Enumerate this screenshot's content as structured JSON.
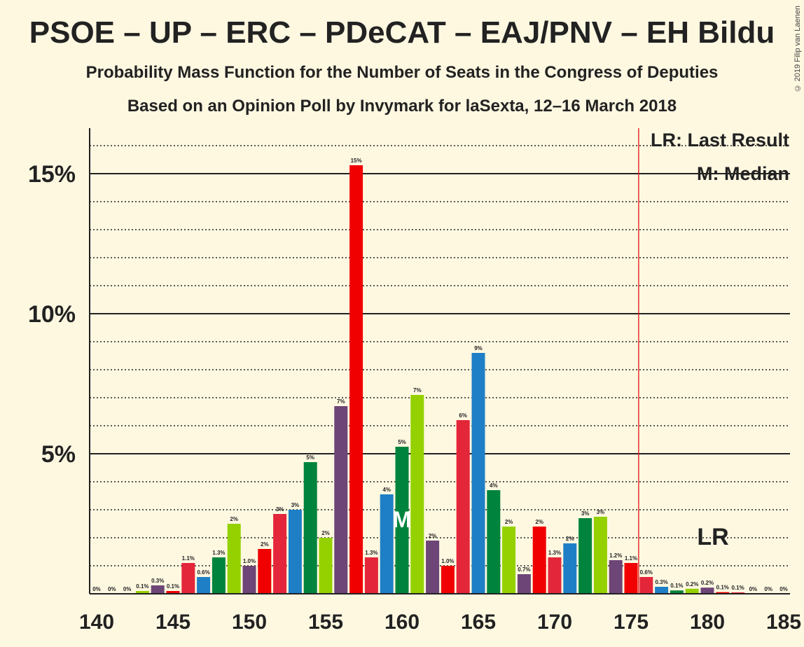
{
  "chart_data": {
    "type": "bar",
    "title": "PSOE – UP – ERC – PDeCAT – EAJ/PNV – EH Bildu",
    "subtitle": "Probability Mass Function for the Number of Seats in the Congress of Deputies",
    "subtitle2": "Based on an Opinion Poll by Invymark for laSexta, 12–16 March 2018",
    "credit": "© 2019 Filip van Laenen",
    "legend": {
      "lr": "LR: Last Result",
      "m": "M: Median"
    },
    "markers": {
      "lr_label": "LR",
      "m_label": "M",
      "last_result_seat": 176,
      "median_seat": 160
    },
    "ylim": [
      0,
      16.5
    ],
    "xlim": [
      140,
      185
    ],
    "xticks": [
      140,
      145,
      150,
      155,
      160,
      165,
      170,
      175,
      180,
      185
    ],
    "yticks": [
      {
        "v": 5,
        "label": "5%"
      },
      {
        "v": 10,
        "label": "10%"
      },
      {
        "v": 15,
        "label": "15%"
      }
    ],
    "grid": true,
    "colors": [
      "#e4263a",
      "#1e7fc6",
      "#00843d",
      "#95d100",
      "#6d4577",
      "#f00000"
    ],
    "bars": [
      {
        "x": 140,
        "v": 0.0,
        "label": "0%"
      },
      {
        "x": 141,
        "v": 0.0,
        "label": "0%"
      },
      {
        "x": 142,
        "v": 0.0,
        "label": "0%"
      },
      {
        "x": 143,
        "v": 0.1,
        "label": "0.1%"
      },
      {
        "x": 144,
        "v": 0.3,
        "label": "0.3%"
      },
      {
        "x": 145,
        "v": 0.1,
        "label": "0.1%"
      },
      {
        "x": 146,
        "v": 1.1,
        "label": "1.1%"
      },
      {
        "x": 147,
        "v": 0.6,
        "label": "0.6%"
      },
      {
        "x": 148,
        "v": 1.3,
        "label": "1.3%"
      },
      {
        "x": 149,
        "v": 2.5,
        "label": "2%"
      },
      {
        "x": 150,
        "v": 1.0,
        "label": "1.0%"
      },
      {
        "x": 151,
        "v": 1.6,
        "label": "2%"
      },
      {
        "x": 152,
        "v": 2.85,
        "label": "3%"
      },
      {
        "x": 153,
        "v": 3.0,
        "label": "3%"
      },
      {
        "x": 154,
        "v": 4.7,
        "label": "5%"
      },
      {
        "x": 155,
        "v": 2.0,
        "label": "2%"
      },
      {
        "x": 156,
        "v": 6.7,
        "label": "7%"
      },
      {
        "x": 157,
        "v": 15.3,
        "label": "15%"
      },
      {
        "x": 158,
        "v": 1.3,
        "label": "1.3%"
      },
      {
        "x": 159,
        "v": 3.55,
        "label": "4%"
      },
      {
        "x": 160,
        "v": 5.25,
        "label": "5%"
      },
      {
        "x": 161,
        "v": 7.1,
        "label": "7%"
      },
      {
        "x": 162,
        "v": 1.9,
        "label": "2%"
      },
      {
        "x": 163,
        "v": 1.0,
        "label": "1.0%"
      },
      {
        "x": 164,
        "v": 6.2,
        "label": "6%"
      },
      {
        "x": 165,
        "v": 8.6,
        "label": "9%"
      },
      {
        "x": 166,
        "v": 3.7,
        "label": "4%"
      },
      {
        "x": 167,
        "v": 2.4,
        "label": "2%"
      },
      {
        "x": 168,
        "v": 0.7,
        "label": "0.7%"
      },
      {
        "x": 169,
        "v": 2.4,
        "label": "2%"
      },
      {
        "x": 170,
        "v": 1.3,
        "label": "1.3%"
      },
      {
        "x": 171,
        "v": 1.8,
        "label": "2%"
      },
      {
        "x": 172,
        "v": 2.7,
        "label": "3%"
      },
      {
        "x": 173,
        "v": 2.75,
        "label": "3%"
      },
      {
        "x": 174,
        "v": 1.2,
        "label": "1.2%"
      },
      {
        "x": 175,
        "v": 1.1,
        "label": "1.1%"
      },
      {
        "x": 176,
        "v": 0.6,
        "label": "0.6%"
      },
      {
        "x": 177,
        "v": 0.25,
        "label": "0.3%"
      },
      {
        "x": 178,
        "v": 0.12,
        "label": "0.1%"
      },
      {
        "x": 179,
        "v": 0.18,
        "label": "0.2%"
      },
      {
        "x": 180,
        "v": 0.22,
        "label": "0.2%"
      },
      {
        "x": 181,
        "v": 0.06,
        "label": "0.1%"
      },
      {
        "x": 182,
        "v": 0.05,
        "label": "0.1%"
      },
      {
        "x": 183,
        "v": 0.0,
        "label": "0%"
      },
      {
        "x": 184,
        "v": 0.0,
        "label": "0%"
      },
      {
        "x": 185,
        "v": 0.0,
        "label": "0%"
      }
    ]
  }
}
